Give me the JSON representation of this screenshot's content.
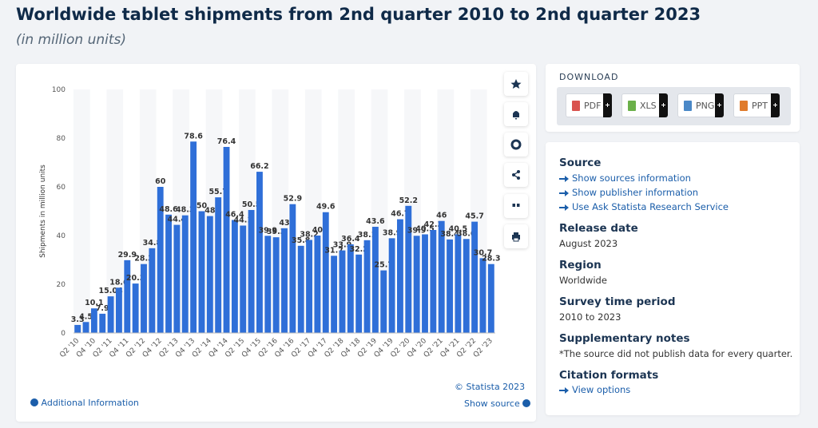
{
  "title": "Worldwide tablet shipments from 2nd quarter 2010 to 2nd quarter 2023",
  "subtitle": "(in million units)",
  "chart_data": {
    "type": "bar",
    "color": "#2f6fd8",
    "y_label": "Shipments in million units",
    "categories": [
      "Q2 '10",
      null,
      "Q4 '10",
      null,
      "Q2 '11",
      null,
      "Q4 '11",
      null,
      "Q2 '12",
      null,
      "Q4 '12",
      null,
      "Q2 '13",
      null,
      "Q4 '13",
      null,
      "Q2 '14",
      null,
      "Q4 '14",
      null,
      "Q2 '15",
      null,
      "Q4 '15",
      null,
      "Q2 '16",
      null,
      "Q4 '16",
      null,
      "Q2 '17",
      null,
      "Q4 '17",
      null,
      "Q2 '18",
      null,
      "Q4 '18",
      null,
      "Q2 '19",
      null,
      "Q4 '19",
      null,
      "Q2 '20",
      null,
      "Q4 '20",
      null,
      "Q2 '21",
      null,
      "Q4 '21",
      null,
      "Q2 '22",
      null,
      "Q2 '23"
    ],
    "values": [
      3.3,
      4.5,
      10.1,
      7.9,
      15.04,
      18.6,
      29.9,
      20.3,
      28.3,
      34.8,
      60,
      48.6,
      44.4,
      48.3,
      78.6,
      50,
      48,
      55.7,
      76.4,
      46.4,
      44.1,
      50.5,
      66.2,
      39.9,
      39.3,
      43,
      52.9,
      35.8,
      38.2,
      40,
      49.6,
      31.7,
      33.9,
      36.4,
      32.2,
      38.1,
      43.6,
      25.7,
      38.9,
      46.7,
      52.2,
      39.9,
      40.5,
      42.3,
      46,
      38.4,
      40.5,
      38.6,
      45.7,
      30.7,
      28.3
    ],
    "ylim": [
      0,
      100
    ],
    "yticks": [
      0,
      20,
      40,
      60,
      80,
      100
    ],
    "copyright": "© Statista 2023",
    "additional": "Additional Information",
    "show_source": "Show source"
  },
  "download": {
    "heading": "DOWNLOAD",
    "buttons": [
      "PDF",
      "XLS",
      "PNG",
      "PPT"
    ]
  },
  "info": {
    "source": "Source",
    "source_links": [
      "Show sources information",
      "Show publisher information",
      "Use Ask Statista Research Service"
    ],
    "release_heading": "Release date",
    "release": "August 2023",
    "region_heading": "Region",
    "region": "Worldwide",
    "period_heading": "Survey time period",
    "period": "2010 to 2023",
    "notes_heading": "Supplementary notes",
    "notes": "*The source did not publish data for every quarter.",
    "citation_heading": "Citation formats",
    "citation": "View options"
  }
}
